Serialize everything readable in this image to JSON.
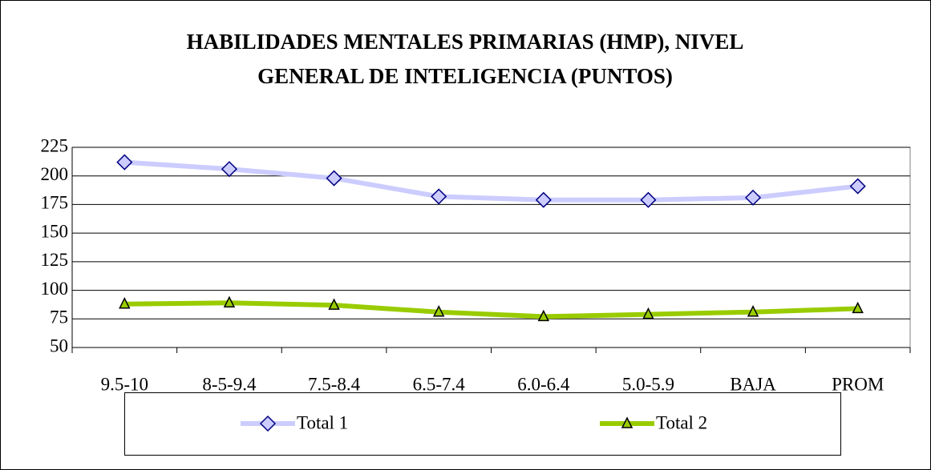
{
  "chart_data": {
    "type": "line",
    "title": [
      "HABILIDADES MENTALES PRIMARIAS (HMP), NIVEL",
      "GENERAL DE INTELIGENCIA (PUNTOS)"
    ],
    "categories": [
      "9.5-10",
      "8-5-9.4",
      "7.5-8.4",
      "6.5-7.4",
      "6.0-6.4",
      "5.0-5.9",
      "BAJA",
      "PROM"
    ],
    "series": [
      {
        "name": "Total 1",
        "color": "#ccccff",
        "marker": "diamond",
        "values": [
          212,
          206,
          198,
          182,
          179,
          179,
          181,
          191
        ]
      },
      {
        "name": "Total 2",
        "color": "#99cc00",
        "marker": "triangle",
        "values": [
          88,
          89,
          87,
          81,
          77,
          79,
          81,
          84
        ]
      }
    ],
    "ylim": [
      50,
      225
    ],
    "yticks": [
      50,
      75,
      100,
      125,
      150,
      175,
      200,
      225
    ],
    "grid": true,
    "legend": "bottom"
  }
}
